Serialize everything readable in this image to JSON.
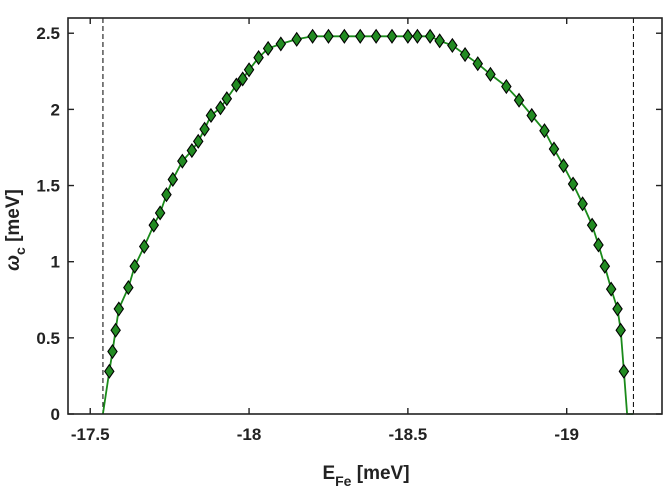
{
  "chart_data": {
    "type": "line",
    "xlabel": "E",
    "xlabel_sub": "Fe",
    "xlabel_unit": " [meV]",
    "ylabel": "ω",
    "ylabel_sub": "c",
    "ylabel_unit": " [meV]",
    "xlim": [
      -17.43,
      -19.3
    ],
    "ylim": [
      0,
      2.6
    ],
    "x_reversed": true,
    "x_ticks": [
      -17.5,
      -18,
      -18.5,
      -19
    ],
    "x_tick_labels": [
      "-17.5",
      "-18",
      "-18.5",
      "-19"
    ],
    "y_ticks": [
      0,
      0.5,
      1,
      1.5,
      2,
      2.5
    ],
    "y_tick_labels": [
      "0",
      "0.5",
      "1",
      "1.5",
      "2",
      "2.5"
    ],
    "vertical_lines": [
      -17.54,
      -19.21
    ],
    "grid": false,
    "series": [
      {
        "color": "#1a8a1a",
        "marker_fill": "#228b22",
        "marker": "diamond",
        "x": [
          -17.54,
          -17.56,
          -17.57,
          -17.58,
          -17.59,
          -17.62,
          -17.64,
          -17.67,
          -17.7,
          -17.72,
          -17.74,
          -17.76,
          -17.79,
          -17.82,
          -17.84,
          -17.86,
          -17.88,
          -17.91,
          -17.93,
          -17.96,
          -17.98,
          -18.0,
          -18.03,
          -18.06,
          -18.1,
          -18.15,
          -18.2,
          -18.25,
          -18.3,
          -18.35,
          -18.4,
          -18.45,
          -18.5,
          -18.53,
          -18.57,
          -18.6,
          -18.64,
          -18.68,
          -18.72,
          -18.76,
          -18.81,
          -18.85,
          -18.89,
          -18.93,
          -18.96,
          -18.99,
          -19.02,
          -19.05,
          -19.08,
          -19.1,
          -19.12,
          -19.14,
          -19.16,
          -19.17,
          -19.18,
          -19.19,
          -19.21
        ],
        "y": [
          0.0,
          0.28,
          0.41,
          0.55,
          0.69,
          0.83,
          0.97,
          1.1,
          1.24,
          1.32,
          1.44,
          1.54,
          1.66,
          1.73,
          1.79,
          1.87,
          1.96,
          2.01,
          2.07,
          2.16,
          2.2,
          2.26,
          2.34,
          2.4,
          2.43,
          2.46,
          2.48,
          2.48,
          2.48,
          2.48,
          2.48,
          2.48,
          2.48,
          2.48,
          2.48,
          2.45,
          2.42,
          2.36,
          2.3,
          2.23,
          2.15,
          2.06,
          1.96,
          1.86,
          1.74,
          1.63,
          1.51,
          1.38,
          1.24,
          1.11,
          0.97,
          0.82,
          0.69,
          0.55,
          0.28,
          0.0,
          0.0
        ]
      }
    ]
  }
}
